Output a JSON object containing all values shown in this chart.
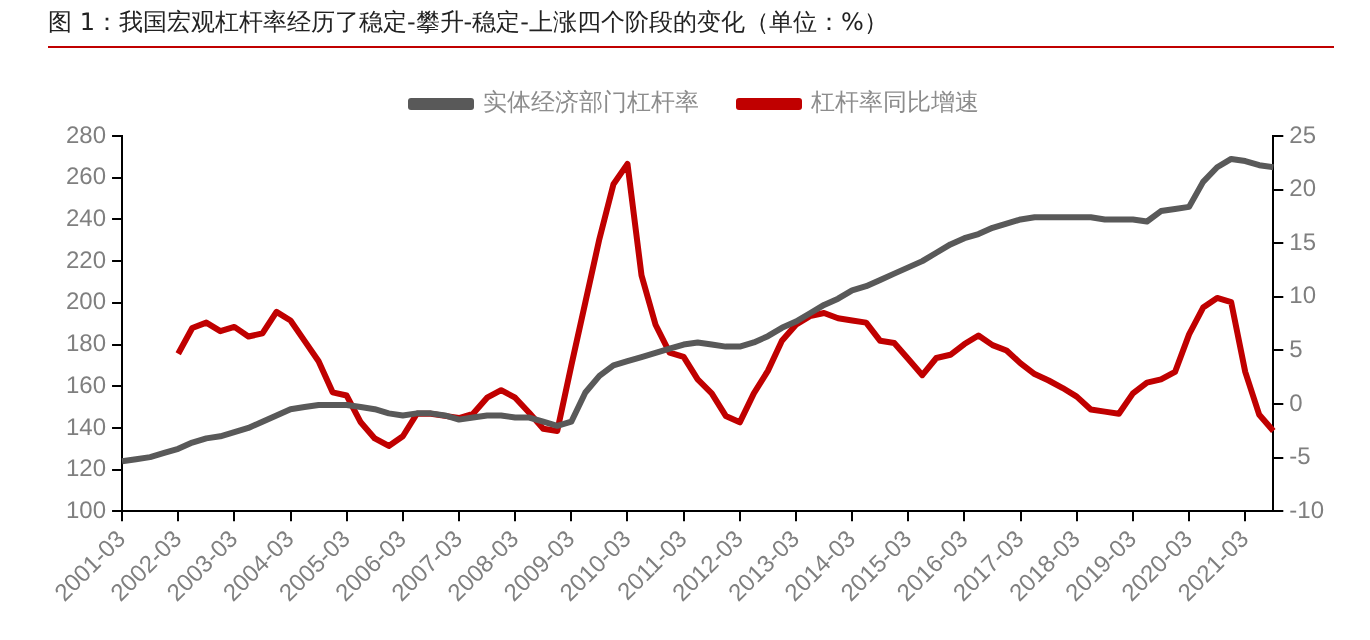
{
  "chart_data": {
    "type": "line",
    "title": "图 1：我国宏观杠杆率经历了稳定-攀升-稳定-上涨四个阶段的变化（单位：%）",
    "categories": [
      "2001-03",
      null,
      null,
      null,
      "2002-03",
      null,
      null,
      null,
      "2003-03",
      null,
      null,
      null,
      "2004-03",
      null,
      null,
      null,
      "2005-03",
      null,
      null,
      null,
      "2006-03",
      null,
      null,
      null,
      "2007-03",
      null,
      null,
      null,
      "2008-03",
      null,
      null,
      null,
      "2009-03",
      null,
      null,
      null,
      "2010-03",
      null,
      null,
      null,
      "2011-03",
      null,
      null,
      null,
      "2012-03",
      null,
      null,
      null,
      "2013-03",
      null,
      null,
      null,
      "2014-03",
      null,
      null,
      null,
      "2015-03",
      null,
      null,
      null,
      "2016-03",
      null,
      null,
      null,
      "2017-03",
      null,
      null,
      null,
      "2018-03",
      null,
      null,
      null,
      "2019-03",
      null,
      null,
      null,
      "2020-03",
      null,
      null,
      null,
      "2021-03",
      null,
      null
    ],
    "series": [
      {
        "name": "实体经济部门杠杆率",
        "color": "#595959",
        "values": [
          124,
          125,
          126,
          128,
          130,
          133,
          135,
          136,
          138,
          140,
          143,
          146,
          149,
          150,
          151,
          151,
          151,
          150,
          149,
          147,
          146,
          147,
          147,
          146,
          144,
          145,
          146,
          146,
          145,
          145,
          143,
          141,
          143,
          157,
          165,
          170,
          172,
          174,
          176,
          178,
          180,
          181,
          180,
          179,
          179,
          181,
          184,
          188,
          191,
          195,
          199,
          202,
          206,
          208,
          211,
          214,
          217,
          220,
          224,
          228,
          231,
          233,
          236,
          238,
          240,
          241,
          241,
          241,
          241,
          241,
          240,
          240,
          240,
          239,
          244,
          245,
          246,
          258,
          265,
          269,
          268,
          266,
          265
        ]
      },
      {
        "name": "杠杆率同比增速",
        "color": "#c00000",
        "axis": "y2",
        "values": [
          null,
          null,
          null,
          null,
          4.7,
          7.1,
          7.6,
          6.8,
          7.2,
          6.3,
          6.6,
          8.6,
          7.8,
          5.9,
          4.0,
          1.1,
          0.8,
          -1.7,
          -3.2,
          -3.9,
          -3.0,
          -0.9,
          -0.9,
          -1.1,
          -1.3,
          -0.9,
          0.6,
          1.3,
          0.6,
          -0.8,
          -2.3,
          -2.5,
          3.6,
          9.5,
          15.4,
          20.5,
          22.4,
          12.0,
          7.4,
          4.8,
          4.4,
          2.3,
          1.0,
          -1.1,
          -1.7,
          1.0,
          3.1,
          5.9,
          7.4,
          8.2,
          8.5,
          8.0,
          7.8,
          7.6,
          5.9,
          5.7,
          4.2,
          2.7,
          4.3,
          4.6,
          5.6,
          6.4,
          5.5,
          5.0,
          3.8,
          2.8,
          2.2,
          1.5,
          0.7,
          -0.5,
          -0.7,
          -0.9,
          1.0,
          2.0,
          2.3,
          3.0,
          6.5,
          9.0,
          9.9,
          9.5,
          3.0,
          -1.0,
          -2.5
        ]
      }
    ],
    "ylim": [
      100,
      280
    ],
    "yticks": [
      100,
      120,
      140,
      160,
      180,
      200,
      220,
      240,
      260,
      280
    ],
    "y2lim": [
      -10,
      25
    ],
    "y2ticks": [
      -10,
      -5,
      0,
      5,
      10,
      15,
      20,
      25
    ],
    "grid": false,
    "legend": "top",
    "marker": "none",
    "line_style": "solid"
  }
}
